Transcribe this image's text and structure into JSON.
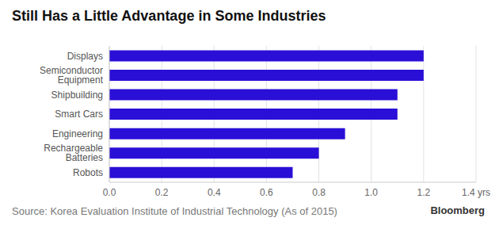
{
  "chart_data": {
    "type": "bar",
    "orientation": "horizontal",
    "title": "Still Has a Little Advantage in Some Industries",
    "categories": [
      "Displays",
      "Semiconductor Equipment",
      "Shipbuilding",
      "Smart Cars",
      "Engineering",
      "Rechargeable Batteries",
      "Robots"
    ],
    "values": [
      1.2,
      1.2,
      1.1,
      1.1,
      0.9,
      0.8,
      0.7
    ],
    "color": "#2a0fd6",
    "xlim": [
      0,
      1.4
    ],
    "xticks": [
      {
        "value": 0,
        "label": "0.0"
      },
      0.2,
      0.4,
      0.6,
      0.8,
      {
        "value": 1,
        "label": "1.0"
      },
      1.2,
      {
        "value": 1.4,
        "label": "1.4 yrs"
      }
    ],
    "grid": true,
    "source": "Source: Korea Evaluation Institute of Industrial Technology (As of 2015)",
    "credit": "Bloomberg"
  }
}
